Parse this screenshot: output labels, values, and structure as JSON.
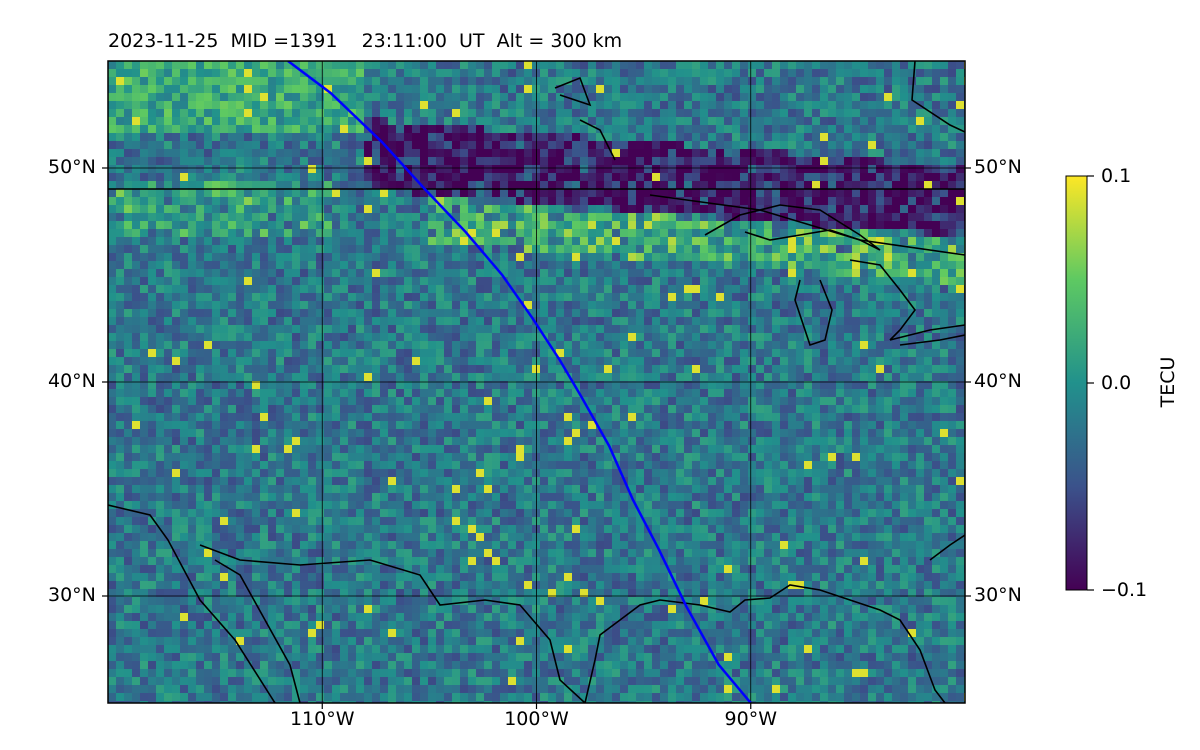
{
  "title": "2023-11-25  MID =1391    23:11:00  UT  Alt = 300 km",
  "map": {
    "lon_range": [
      -120,
      -80
    ],
    "lat_range": [
      25,
      55
    ],
    "lat_ticks": [
      {
        "value": 50,
        "label": "50°N"
      },
      {
        "value": 40,
        "label": "40°N"
      },
      {
        "value": 30,
        "label": "30°N"
      }
    ],
    "lon_ticks": [
      {
        "value": -110,
        "label": "110°W"
      },
      {
        "value": -100,
        "label": "100°W"
      },
      {
        "value": -90,
        "label": "90°W"
      }
    ],
    "grid": true,
    "field": "TEC perturbation heatmap",
    "track_color": "#0000ff",
    "track": [
      [
        -111.6,
        55
      ],
      [
        -109.6,
        53.5
      ],
      [
        -107.2,
        51.2
      ],
      [
        -105.2,
        49.0
      ],
      [
        -103.3,
        47
      ],
      [
        -101.6,
        45
      ],
      [
        -100.2,
        43
      ],
      [
        -98.9,
        41
      ],
      [
        -97.9,
        39.3
      ],
      [
        -96.6,
        37
      ],
      [
        -95.5,
        34.5
      ],
      [
        -94.3,
        32.2
      ],
      [
        -93.0,
        29.5
      ],
      [
        -91.5,
        26.8
      ],
      [
        -90.0,
        25.0
      ]
    ]
  },
  "colorbar": {
    "title": "TECU",
    "min": -0.1,
    "max": 0.1,
    "ticks": [
      {
        "value": 0.1,
        "label": "0.1"
      },
      {
        "value": 0.0,
        "label": "0.0"
      },
      {
        "value": -0.1,
        "label": "−0.1"
      }
    ],
    "colormap": [
      "#440154",
      "#3b528b",
      "#21918c",
      "#5ec962",
      "#fde725"
    ]
  }
}
